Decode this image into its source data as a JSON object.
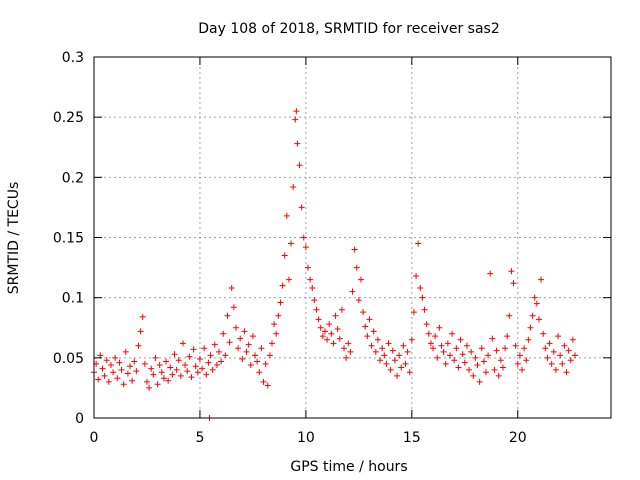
{
  "chart_data": {
    "type": "scatter",
    "title": "Day 108 of 2018, SRMTID for receiver sas2",
    "xlabel": "GPS time / hours",
    "ylabel": "SRMTID / TECUs",
    "xlim": [
      0,
      24.4
    ],
    "ylim": [
      0,
      0.3
    ],
    "xticks": [
      {
        "value": 0,
        "label": "0"
      },
      {
        "value": 5,
        "label": "5"
      },
      {
        "value": 10,
        "label": "10"
      },
      {
        "value": 15,
        "label": "15"
      },
      {
        "value": 20,
        "label": "20"
      }
    ],
    "yticks": [
      {
        "value": 0,
        "label": "0"
      },
      {
        "value": 0.05,
        "label": "0.05"
      },
      {
        "value": 0.1,
        "label": "0.1"
      },
      {
        "value": 0.15,
        "label": "0.15"
      },
      {
        "value": 0.2,
        "label": "0.2"
      },
      {
        "value": 0.25,
        "label": "0.25"
      },
      {
        "value": 0.3,
        "label": "0.3"
      }
    ],
    "grid": true,
    "marker": "+",
    "color": "#ff0000",
    "series": [
      {
        "name": "SRMTID",
        "points": [
          [
            0.0,
            0.038
          ],
          [
            0.1,
            0.045
          ],
          [
            0.2,
            0.032
          ],
          [
            0.3,
            0.052
          ],
          [
            0.4,
            0.041
          ],
          [
            0.5,
            0.035
          ],
          [
            0.6,
            0.048
          ],
          [
            0.7,
            0.03
          ],
          [
            0.8,
            0.044
          ],
          [
            0.9,
            0.038
          ],
          [
            1.0,
            0.05
          ],
          [
            1.1,
            0.033
          ],
          [
            1.2,
            0.046
          ],
          [
            1.3,
            0.04
          ],
          [
            1.4,
            0.028
          ],
          [
            1.5,
            0.055
          ],
          [
            1.6,
            0.037
          ],
          [
            1.7,
            0.043
          ],
          [
            1.8,
            0.031
          ],
          [
            1.9,
            0.047
          ],
          [
            2.0,
            0.039
          ],
          [
            2.1,
            0.06
          ],
          [
            2.2,
            0.072
          ],
          [
            2.3,
            0.084
          ],
          [
            2.4,
            0.045
          ],
          [
            2.5,
            0.03
          ],
          [
            2.6,
            0.025
          ],
          [
            2.7,
            0.041
          ],
          [
            2.8,
            0.036
          ],
          [
            2.9,
            0.05
          ],
          [
            3.0,
            0.028
          ],
          [
            3.1,
            0.044
          ],
          [
            3.2,
            0.038
          ],
          [
            3.3,
            0.033
          ],
          [
            3.4,
            0.047
          ],
          [
            3.5,
            0.031
          ],
          [
            3.6,
            0.042
          ],
          [
            3.7,
            0.036
          ],
          [
            3.8,
            0.053
          ],
          [
            3.9,
            0.04
          ],
          [
            4.0,
            0.048
          ],
          [
            4.1,
            0.035
          ],
          [
            4.2,
            0.062
          ],
          [
            4.3,
            0.044
          ],
          [
            4.4,
            0.039
          ],
          [
            4.5,
            0.051
          ],
          [
            4.6,
            0.034
          ],
          [
            4.7,
            0.057
          ],
          [
            4.8,
            0.043
          ],
          [
            4.9,
            0.038
          ],
          [
            5.0,
            0.049
          ],
          [
            5.1,
            0.041
          ],
          [
            5.2,
            0.058
          ],
          [
            5.3,
            0.036
          ],
          [
            5.4,
            0.046
          ],
          [
            5.45,
            0.0
          ],
          [
            5.5,
            0.052
          ],
          [
            5.6,
            0.04
          ],
          [
            5.7,
            0.061
          ],
          [
            5.8,
            0.044
          ],
          [
            5.9,
            0.055
          ],
          [
            6.0,
            0.047
          ],
          [
            6.1,
            0.07
          ],
          [
            6.2,
            0.052
          ],
          [
            6.3,
            0.085
          ],
          [
            6.4,
            0.063
          ],
          [
            6.5,
            0.108
          ],
          [
            6.6,
            0.092
          ],
          [
            6.7,
            0.075
          ],
          [
            6.8,
            0.058
          ],
          [
            6.9,
            0.066
          ],
          [
            7.0,
            0.049
          ],
          [
            7.1,
            0.072
          ],
          [
            7.2,
            0.055
          ],
          [
            7.3,
            0.061
          ],
          [
            7.4,
            0.044
          ],
          [
            7.5,
            0.068
          ],
          [
            7.6,
            0.052
          ],
          [
            7.7,
            0.047
          ],
          [
            7.8,
            0.038
          ],
          [
            7.9,
            0.058
          ],
          [
            8.0,
            0.03
          ],
          [
            8.1,
            0.045
          ],
          [
            8.2,
            0.027
          ],
          [
            8.3,
            0.052
          ],
          [
            8.4,
            0.062
          ],
          [
            8.5,
            0.078
          ],
          [
            8.6,
            0.07
          ],
          [
            8.7,
            0.085
          ],
          [
            8.8,
            0.096
          ],
          [
            8.9,
            0.11
          ],
          [
            9.0,
            0.135
          ],
          [
            9.1,
            0.168
          ],
          [
            9.2,
            0.115
          ],
          [
            9.3,
            0.145
          ],
          [
            9.4,
            0.192
          ],
          [
            9.5,
            0.248
          ],
          [
            9.55,
            0.255
          ],
          [
            9.6,
            0.228
          ],
          [
            9.7,
            0.21
          ],
          [
            9.8,
            0.175
          ],
          [
            9.9,
            0.15
          ],
          [
            10.0,
            0.142
          ],
          [
            10.1,
            0.125
          ],
          [
            10.2,
            0.115
          ],
          [
            10.3,
            0.108
          ],
          [
            10.4,
            0.098
          ],
          [
            10.5,
            0.09
          ],
          [
            10.6,
            0.082
          ],
          [
            10.7,
            0.075
          ],
          [
            10.8,
            0.068
          ],
          [
            10.9,
            0.072
          ],
          [
            11.0,
            0.065
          ],
          [
            11.1,
            0.078
          ],
          [
            11.2,
            0.07
          ],
          [
            11.3,
            0.062
          ],
          [
            11.4,
            0.085
          ],
          [
            11.5,
            0.074
          ],
          [
            11.6,
            0.066
          ],
          [
            11.7,
            0.09
          ],
          [
            11.8,
            0.058
          ],
          [
            11.9,
            0.05
          ],
          [
            12.0,
            0.062
          ],
          [
            12.1,
            0.055
          ],
          [
            12.2,
            0.105
          ],
          [
            12.3,
            0.14
          ],
          [
            12.4,
            0.125
          ],
          [
            12.5,
            0.098
          ],
          [
            12.6,
            0.115
          ],
          [
            12.7,
            0.088
          ],
          [
            12.8,
            0.076
          ],
          [
            12.9,
            0.068
          ],
          [
            13.0,
            0.082
          ],
          [
            13.1,
            0.06
          ],
          [
            13.2,
            0.072
          ],
          [
            13.3,
            0.055
          ],
          [
            13.4,
            0.065
          ],
          [
            13.5,
            0.048
          ],
          [
            13.6,
            0.058
          ],
          [
            13.7,
            0.052
          ],
          [
            13.8,
            0.045
          ],
          [
            13.9,
            0.062
          ],
          [
            14.0,
            0.04
          ],
          [
            14.1,
            0.056
          ],
          [
            14.2,
            0.048
          ],
          [
            14.3,
            0.035
          ],
          [
            14.4,
            0.052
          ],
          [
            14.5,
            0.042
          ],
          [
            14.6,
            0.06
          ],
          [
            14.7,
            0.045
          ],
          [
            14.8,
            0.055
          ],
          [
            14.9,
            0.038
          ],
          [
            15.0,
            0.065
          ],
          [
            15.1,
            0.088
          ],
          [
            15.2,
            0.118
          ],
          [
            15.3,
            0.145
          ],
          [
            15.4,
            0.108
          ],
          [
            15.5,
            0.1
          ],
          [
            15.6,
            0.09
          ],
          [
            15.7,
            0.078
          ],
          [
            15.8,
            0.07
          ],
          [
            15.9,
            0.062
          ],
          [
            16.0,
            0.058
          ],
          [
            16.1,
            0.068
          ],
          [
            16.2,
            0.05
          ],
          [
            16.3,
            0.075
          ],
          [
            16.4,
            0.06
          ],
          [
            16.5,
            0.055
          ],
          [
            16.6,
            0.045
          ],
          [
            16.7,
            0.062
          ],
          [
            16.8,
            0.052
          ],
          [
            16.9,
            0.07
          ],
          [
            17.0,
            0.048
          ],
          [
            17.1,
            0.058
          ],
          [
            17.2,
            0.042
          ],
          [
            17.3,
            0.065
          ],
          [
            17.4,
            0.053
          ],
          [
            17.5,
            0.046
          ],
          [
            17.6,
            0.06
          ],
          [
            17.7,
            0.04
          ],
          [
            17.8,
            0.055
          ],
          [
            17.9,
            0.035
          ],
          [
            18.0,
            0.05
          ],
          [
            18.1,
            0.044
          ],
          [
            18.2,
            0.03
          ],
          [
            18.3,
            0.058
          ],
          [
            18.4,
            0.047
          ],
          [
            18.5,
            0.038
          ],
          [
            18.6,
            0.052
          ],
          [
            18.7,
            0.12
          ],
          [
            18.8,
            0.066
          ],
          [
            18.9,
            0.04
          ],
          [
            19.0,
            0.056
          ],
          [
            19.1,
            0.035
          ],
          [
            19.2,
            0.048
          ],
          [
            19.3,
            0.042
          ],
          [
            19.4,
            0.058
          ],
          [
            19.5,
            0.068
          ],
          [
            19.6,
            0.085
          ],
          [
            19.7,
            0.122
          ],
          [
            19.8,
            0.112
          ],
          [
            19.9,
            0.06
          ],
          [
            20.0,
            0.045
          ],
          [
            20.1,
            0.052
          ],
          [
            20.2,
            0.04
          ],
          [
            20.3,
            0.058
          ],
          [
            20.4,
            0.048
          ],
          [
            20.5,
            0.065
          ],
          [
            20.6,
            0.075
          ],
          [
            20.7,
            0.085
          ],
          [
            20.8,
            0.1
          ],
          [
            20.9,
            0.095
          ],
          [
            21.0,
            0.082
          ],
          [
            21.1,
            0.115
          ],
          [
            21.2,
            0.07
          ],
          [
            21.3,
            0.058
          ],
          [
            21.4,
            0.05
          ],
          [
            21.5,
            0.062
          ],
          [
            21.6,
            0.045
          ],
          [
            21.7,
            0.055
          ],
          [
            21.8,
            0.04
          ],
          [
            21.9,
            0.068
          ],
          [
            22.0,
            0.052
          ],
          [
            22.1,
            0.045
          ],
          [
            22.2,
            0.06
          ],
          [
            22.3,
            0.038
          ],
          [
            22.4,
            0.056
          ],
          [
            22.5,
            0.048
          ],
          [
            22.6,
            0.065
          ],
          [
            22.7,
            0.052
          ]
        ]
      }
    ]
  }
}
